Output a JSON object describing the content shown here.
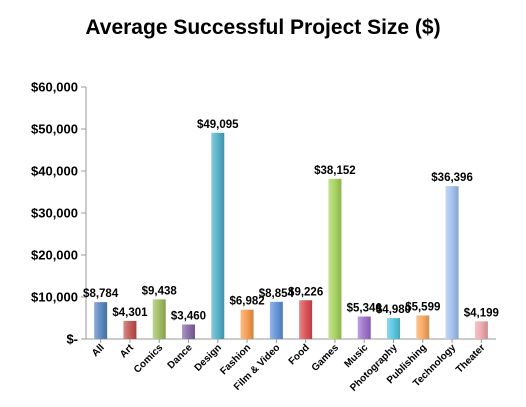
{
  "chart_data": {
    "type": "bar",
    "title": "Average Successful Project Size ($)",
    "xlabel": "",
    "ylabel": "",
    "ylim": [
      0,
      60000
    ],
    "yticks": [
      0,
      10000,
      20000,
      30000,
      40000,
      50000,
      60000
    ],
    "ytick_labels": [
      "$-",
      "$10,000",
      "$20,000",
      "$30,000",
      "$40,000",
      "$50,000",
      "$60,000"
    ],
    "grid": false,
    "legend": "none",
    "categories": [
      "All",
      "Art",
      "Comics",
      "Dance",
      "Design",
      "Fashion",
      "Film & Video",
      "Food",
      "Games",
      "Music",
      "Photography",
      "Publishing",
      "Technology",
      "Theater"
    ],
    "values": [
      8784,
      4301,
      9438,
      3460,
      49095,
      6982,
      8854,
      9226,
      38152,
      5346,
      4980,
      5599,
      36396,
      4199
    ],
    "data_labels": [
      "$8,784",
      "$4,301",
      "$9,438",
      "$3,460",
      "$49,095",
      "$6,982",
      "$8,854",
      "$9,226",
      "$38,152",
      "$5,346",
      "$4,980",
      "$5,599",
      "$36,396",
      "$4,199"
    ],
    "colors": [
      "#4f81bd",
      "#c0504d",
      "#9bbb59",
      "#8064a2",
      "#4bacc6",
      "#f79646",
      "#5b8fd8",
      "#d9484d",
      "#a4d356",
      "#9a6bc9",
      "#4fc4e0",
      "#f8a55a",
      "#9fbfee",
      "#eea4a8"
    ]
  }
}
